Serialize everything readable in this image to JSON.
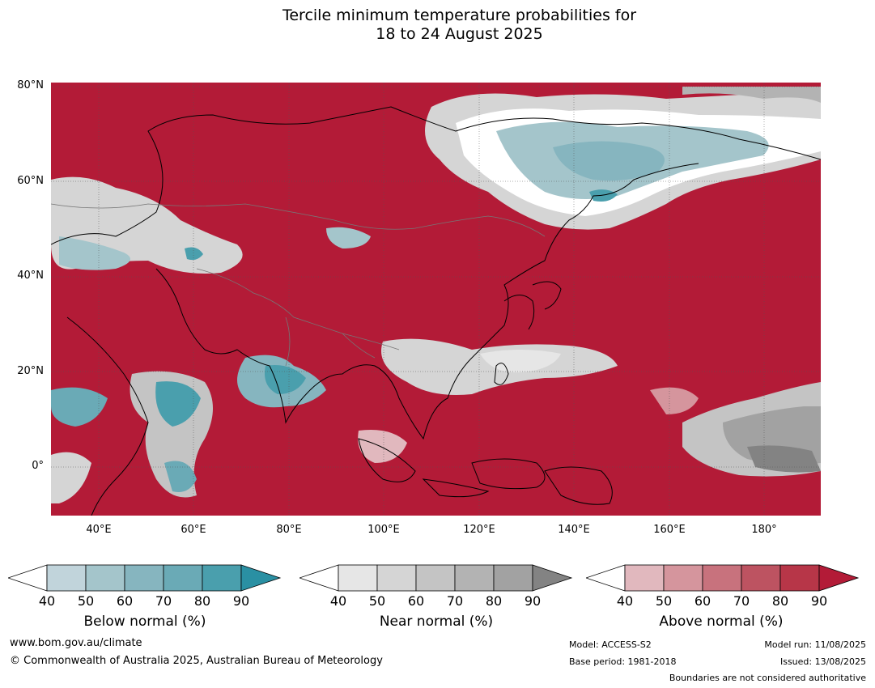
{
  "title": {
    "line1": "Tercile minimum temperature probabilities for",
    "line2": "18 to 24 August 2025"
  },
  "map": {
    "lat_labels": [
      "80°N",
      "60°N",
      "40°N",
      "20°N",
      "0°"
    ],
    "lon_labels": [
      "40°E",
      "60°E",
      "80°E",
      "100°E",
      "120°E",
      "140°E",
      "160°E",
      "180°"
    ],
    "background_color": "#b31b37"
  },
  "colorbars": [
    {
      "title": "Below normal (%)",
      "ticks": [
        "40",
        "50",
        "60",
        "70",
        "80",
        "90"
      ],
      "colors": [
        "#ffffff",
        "#c1d4db",
        "#a4c5cb",
        "#86b5bf",
        "#6aaab6",
        "#4a9fad",
        "#2a90a3"
      ]
    },
    {
      "title": "Near normal (%)",
      "ticks": [
        "40",
        "50",
        "60",
        "70",
        "80",
        "90"
      ],
      "colors": [
        "#ffffff",
        "#e6e6e6",
        "#d5d5d5",
        "#c4c4c4",
        "#b3b3b3",
        "#a2a2a2",
        "#838383"
      ]
    },
    {
      "title": "Above normal (%)",
      "ticks": [
        "40",
        "50",
        "60",
        "70",
        "80",
        "90"
      ],
      "colors": [
        "#ffffff",
        "#e1b8be",
        "#d5959d",
        "#c8727d",
        "#bd5361",
        "#b73648",
        "#b31b37"
      ]
    }
  ],
  "footer": {
    "website": "www.bom.gov.au/climate",
    "copyright": "© Commonwealth of Australia 2025, Australian Bureau of Meteorology",
    "model": "Model: ACCESS-S2",
    "base_period": "Base period: 1981-2018",
    "model_run": "Model run: 11/08/2025",
    "issued": "Issued: 13/08/2025",
    "disclaimer": "Boundaries are not considered authoritative"
  }
}
